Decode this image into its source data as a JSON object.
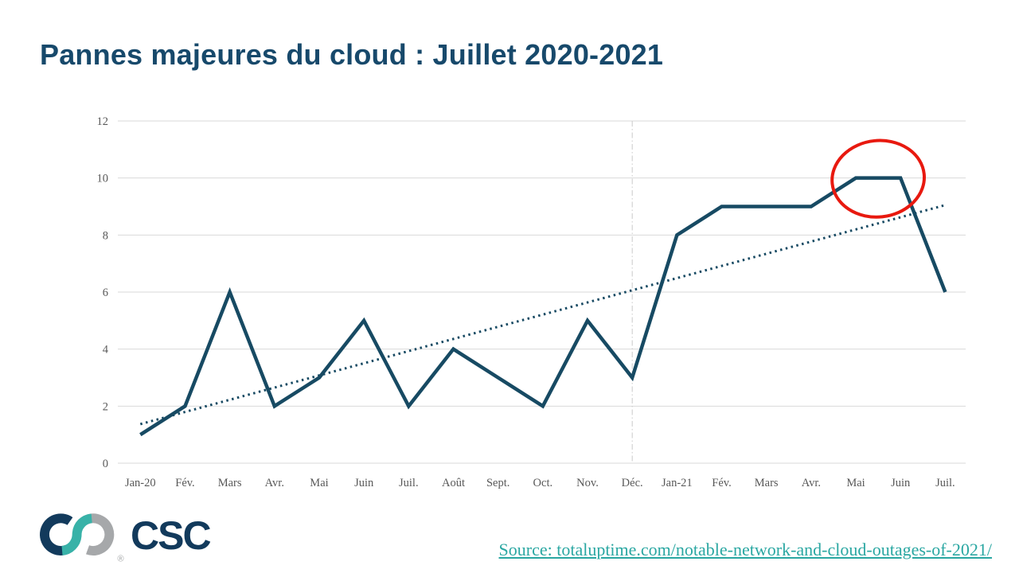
{
  "header": {
    "title": "Pannes majeures du cloud : Juillet 2020-2021"
  },
  "colors": {
    "title_navy": "#17496b",
    "series_navy": "#174a63",
    "highlight_red": "#e8190f",
    "link_teal": "#2aa7a2",
    "grid_gray": "#d9d9d9",
    "tick_gray": "#595959"
  },
  "chart_data": {
    "type": "line",
    "title": "Pannes majeures du cloud : Juillet 2020-2021",
    "categories": [
      "Jan-20",
      "Fév.",
      "Mars",
      "Avr.",
      "Mai",
      "Juin",
      "Juil.",
      "Août",
      "Sept.",
      "Oct.",
      "Nov.",
      "Déc.",
      "Jan-21",
      "Fév.",
      "Mars",
      "Avr.",
      "Mai",
      "Juin",
      "Juil."
    ],
    "values": [
      1,
      2,
      6,
      2,
      3,
      5,
      2,
      4,
      3,
      2,
      5,
      3,
      8,
      9,
      9,
      9,
      10,
      10,
      6
    ],
    "ylim": [
      0,
      12
    ],
    "yticks": [
      0,
      2,
      4,
      6,
      8,
      10,
      12
    ],
    "xlabel": "",
    "ylabel": "",
    "grid": "horizontal-only",
    "legend": "none",
    "series_color": "#174a63",
    "grid_color": "#d9d9d9",
    "tick_color": "#595959",
    "trendline": {
      "style": "dotted",
      "color": "#174a63",
      "start_value": 1.37,
      "end_value": 9.05
    },
    "annotations": {
      "highlight_ellipse": {
        "between_category_indexes": [
          16,
          17
        ],
        "value": 10,
        "rx": 58,
        "ry": 48,
        "color": "#e8190f"
      },
      "vertical_divider": {
        "category_index": 11,
        "style": "dash-dot",
        "color": "#c9c9c9"
      }
    }
  },
  "footer": {
    "source_label": "Source: totaluptime.com/notable-network-and-cloud-outages-of-2021/",
    "logo": {
      "wordmark": "CSC",
      "registered": "®",
      "navy": "#123a5c",
      "teal": "#38b2a8",
      "gray": "#a6a8aa"
    }
  }
}
